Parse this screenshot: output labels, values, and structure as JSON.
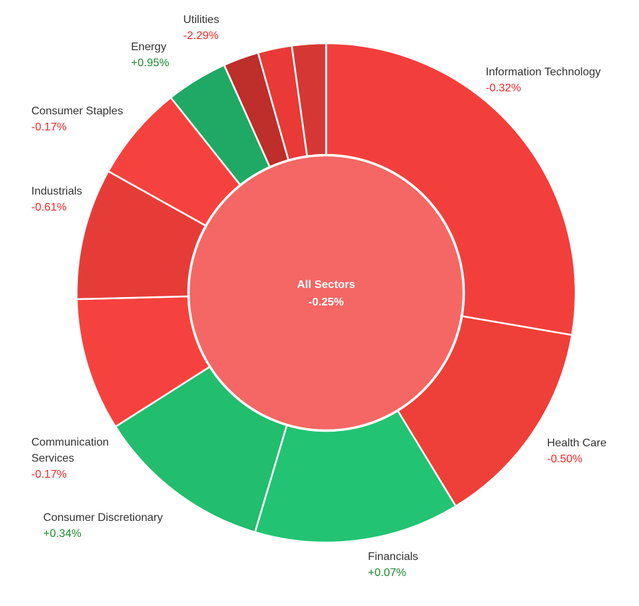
{
  "chart_data": {
    "type": "pie",
    "style": "sunburst",
    "center": {
      "label": "All Sectors",
      "change": "-0.25%"
    },
    "sectors": [
      {
        "name": "Information Technology",
        "change": "-0.32%",
        "weight": 27.7,
        "color": "#f23f3c",
        "label_lines": [
          "Information Technology"
        ]
      },
      {
        "name": "Health Care",
        "change": "-0.50%",
        "weight": 13.6,
        "color": "#ee3f38",
        "label_lines": [
          "Health Care"
        ]
      },
      {
        "name": "Financials",
        "change": "+0.07%",
        "weight": 13.3,
        "color": "#22c372",
        "label_lines": [
          "Financials"
        ]
      },
      {
        "name": "Consumer Discretionary",
        "change": "+0.34%",
        "weight": 11.4,
        "color": "#22bd6d",
        "label_lines": [
          "Consumer Discretionary"
        ]
      },
      {
        "name": "Communication Services",
        "change": "-0.17%",
        "weight": 8.6,
        "color": "#f6423e",
        "label_lines": [
          "Communication",
          "Services"
        ]
      },
      {
        "name": "Industrials",
        "change": "-0.61%",
        "weight": 8.5,
        "color": "#e63c38",
        "label_lines": [
          "Industrials"
        ]
      },
      {
        "name": "Consumer Staples",
        "change": "-0.17%",
        "weight": 6.2,
        "color": "#f6423e",
        "label_lines": [
          "Consumer Staples"
        ]
      },
      {
        "name": "Energy",
        "change": "+0.95%",
        "weight": 4.0,
        "color": "#20a964",
        "label_lines": [
          "Energy"
        ]
      },
      {
        "name": "Utilities",
        "change": "-2.29%",
        "weight": 2.3,
        "color": "#be2e2b",
        "label_lines": [
          "Utilities"
        ]
      },
      {
        "name": "",
        "change": "",
        "weight": 2.2,
        "color": "#e93a37",
        "label_lines": []
      },
      {
        "name": "",
        "change": "",
        "weight": 2.2,
        "color": "#d53834",
        "label_lines": []
      }
    ],
    "colors": {
      "negative_text": "#f52828",
      "positive_text": "#1e8a2e",
      "label_text": "#333333",
      "center_fill": "#f46764",
      "center_text": "#ffffff"
    }
  }
}
